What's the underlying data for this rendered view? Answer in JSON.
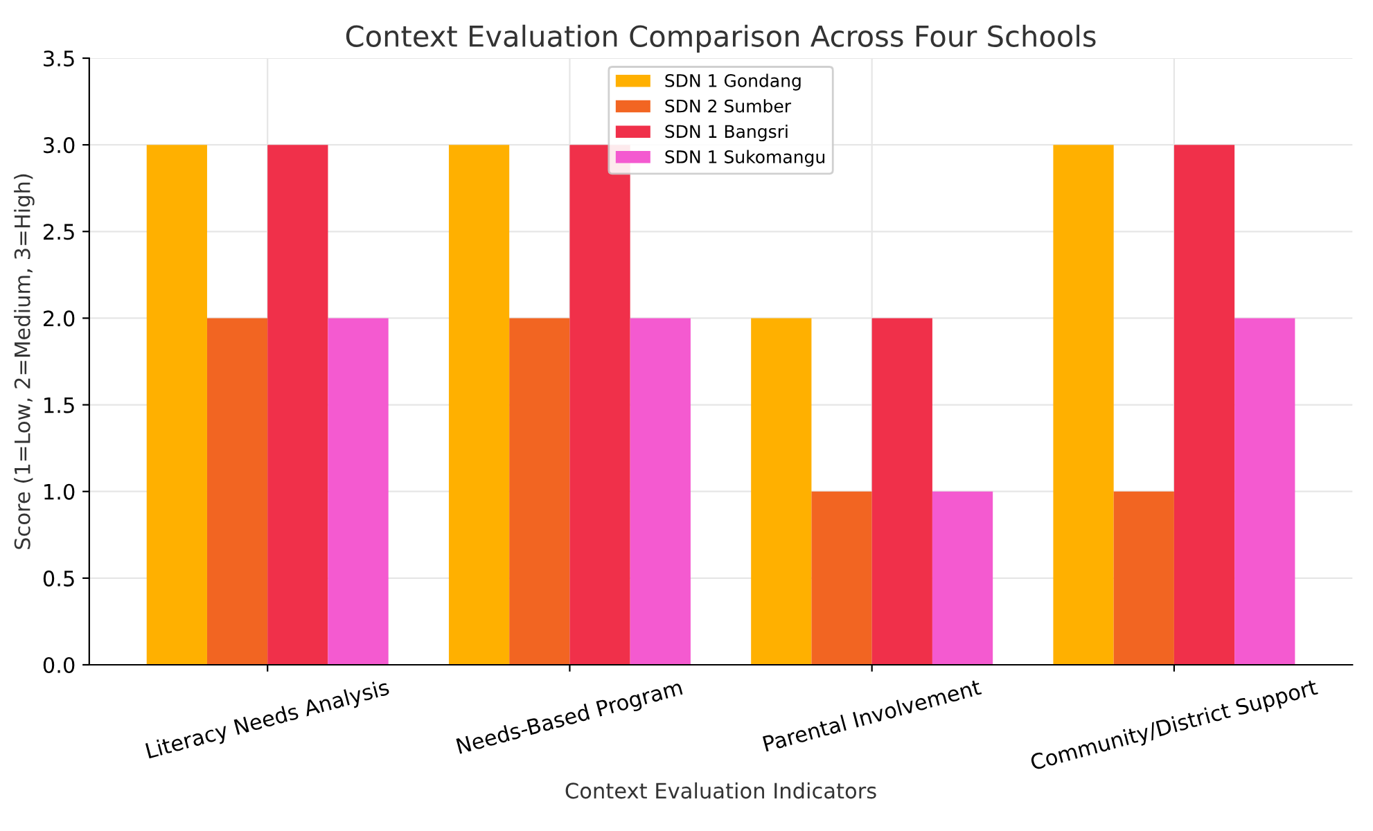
{
  "chart_data": {
    "type": "bar",
    "title": "Context Evaluation Comparison Across Four Schools",
    "xlabel": "Context Evaluation Indicators",
    "ylabel": "Score (1=Low, 2=Medium, 3=High)",
    "categories": [
      "Literacy Needs Analysis",
      "Needs-Based Program",
      "Parental Involvement",
      "Community/District Support"
    ],
    "series": [
      {
        "name": "SDN 1 Gondang",
        "color": "#ffb000",
        "values": [
          3,
          3,
          2,
          3
        ]
      },
      {
        "name": "SDN 2 Sumber",
        "color": "#f26522",
        "values": [
          2,
          2,
          1,
          1
        ]
      },
      {
        "name": "SDN 1 Bangsri",
        "color": "#f0304a",
        "values": [
          3,
          3,
          2,
          3
        ]
      },
      {
        "name": "SDN 1 Sukomangu",
        "color": "#f45ad0",
        "values": [
          2,
          2,
          1,
          2
        ]
      }
    ],
    "ylim": [
      0,
      3.5
    ],
    "yticks": [
      {
        "value": 0,
        "label": "0.0"
      },
      {
        "value": 0.5,
        "label": "0.5"
      },
      {
        "value": 1,
        "label": "1.0"
      },
      {
        "value": 1.5,
        "label": "1.5"
      },
      {
        "value": 2,
        "label": "2.0"
      },
      {
        "value": 2.5,
        "label": "2.5"
      },
      {
        "value": 3,
        "label": "3.0"
      },
      {
        "value": 3.5,
        "label": "3.5"
      }
    ],
    "grid": true,
    "legend": "top"
  }
}
